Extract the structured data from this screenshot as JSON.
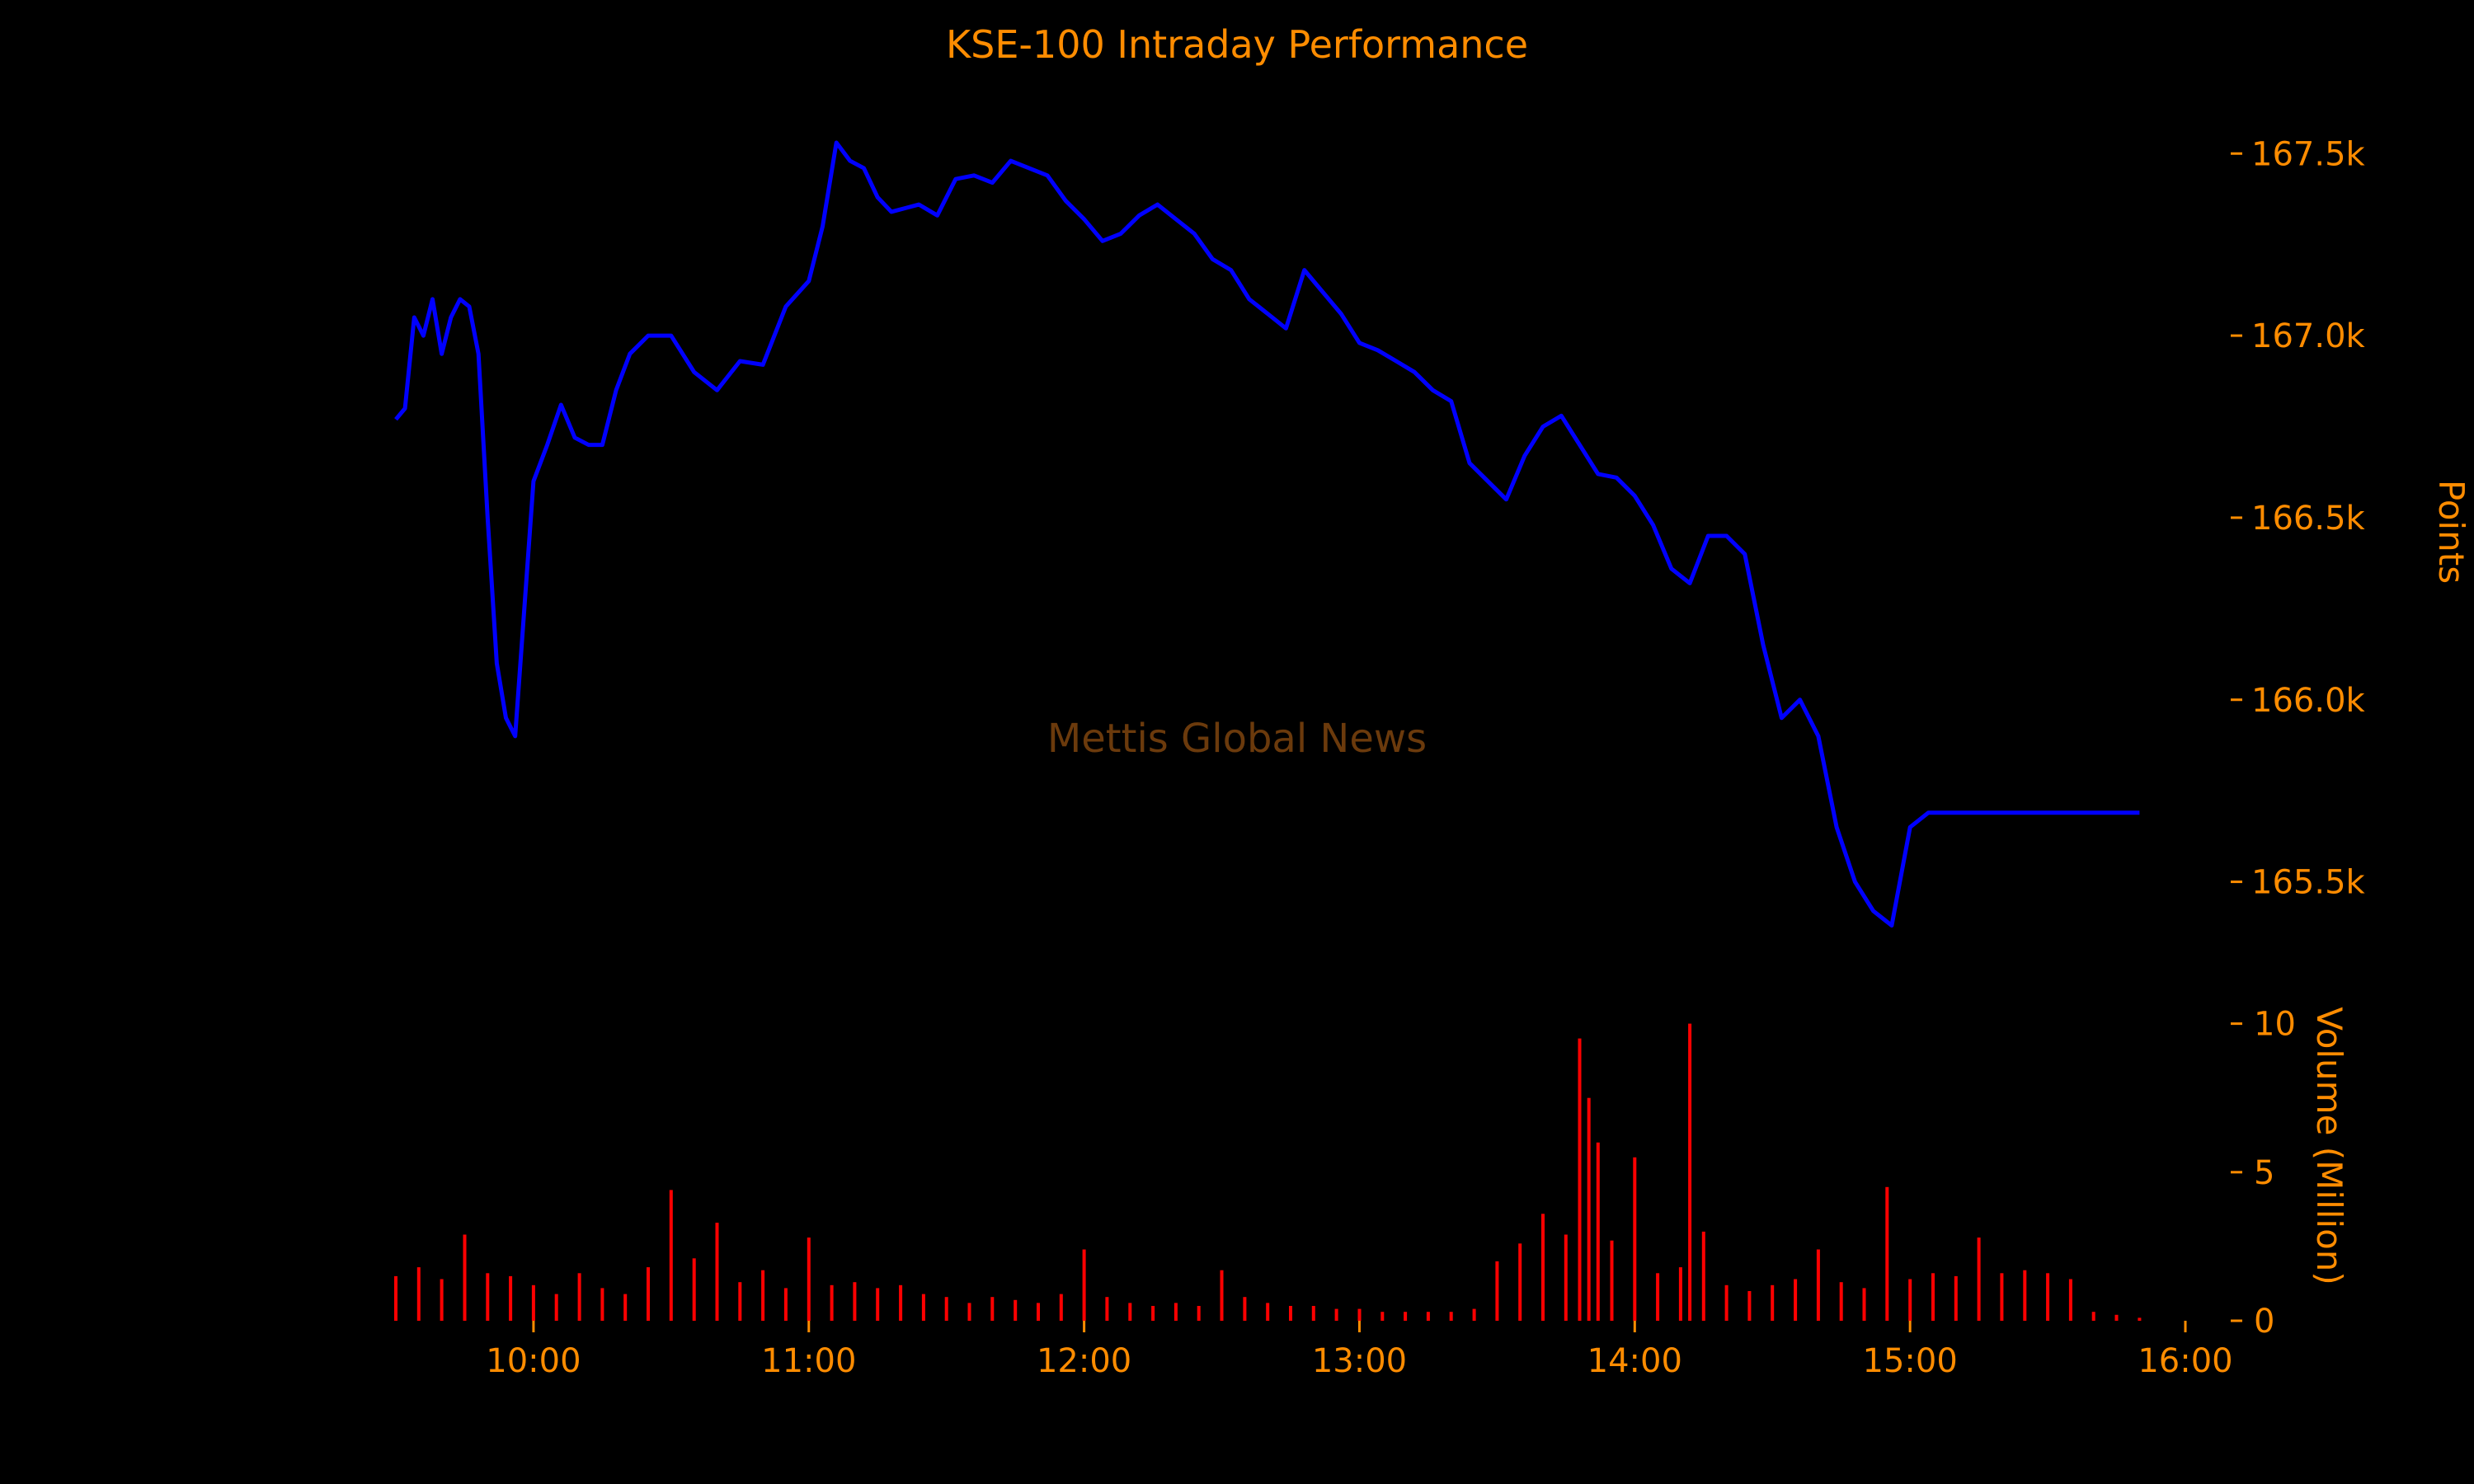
{
  "chart_data": [
    {
      "type": "line",
      "title": "KSE-100 Intraday Performance",
      "ylabel": "Points",
      "y_axis_side": "right",
      "ylim": [
        165250,
        167650
      ],
      "yticks": [
        165500,
        166000,
        166500,
        167000,
        167500
      ],
      "ytick_labels": [
        "165.5k",
        "166.0k",
        "166.5k",
        "167.0k",
        "167.5k"
      ],
      "xlim": [
        "09:30",
        "16:00"
      ],
      "line_color": "#0000ff",
      "grid": false,
      "series": [
        {
          "x": [
            "09:30",
            "09:32",
            "09:34",
            "09:36",
            "09:38",
            "09:40",
            "09:42",
            "09:44",
            "09:46",
            "09:48",
            "09:50",
            "09:52",
            "09:54",
            "09:56",
            "09:58",
            "10:00",
            "10:03",
            "10:06",
            "10:09",
            "10:12",
            "10:15",
            "10:18",
            "10:21",
            "10:25",
            "10:30",
            "10:35",
            "10:40",
            "10:45",
            "10:50",
            "10:55",
            "11:00",
            "11:03",
            "11:06",
            "11:09",
            "11:12",
            "11:15",
            "11:18",
            "11:21",
            "11:24",
            "11:28",
            "11:32",
            "11:36",
            "11:40",
            "11:44",
            "11:48",
            "11:52",
            "11:56",
            "12:00",
            "12:04",
            "12:08",
            "12:12",
            "12:16",
            "12:20",
            "12:24",
            "12:28",
            "12:32",
            "12:36",
            "12:40",
            "12:44",
            "12:48",
            "12:52",
            "12:56",
            "13:00",
            "13:04",
            "13:08",
            "13:12",
            "13:16",
            "13:20",
            "13:24",
            "13:28",
            "13:32",
            "13:36",
            "13:40",
            "13:44",
            "13:48",
            "13:52",
            "13:56",
            "14:00",
            "14:04",
            "14:08",
            "14:12",
            "14:16",
            "14:20",
            "14:24",
            "14:28",
            "14:32",
            "14:36",
            "14:40",
            "14:44",
            "14:48",
            "14:52",
            "14:56",
            "15:00",
            "15:04",
            "15:08",
            "15:12",
            "15:16",
            "15:20",
            "15:24",
            "15:28",
            "15:31",
            "15:35",
            "15:40",
            "15:45",
            "15:50"
          ],
          "values": [
            166770,
            166800,
            167050,
            167000,
            167100,
            166950,
            167050,
            167100,
            167080,
            166950,
            166500,
            166100,
            165950,
            165900,
            166250,
            166600,
            166700,
            166810,
            166720,
            166700,
            166700,
            166850,
            166950,
            167000,
            167000,
            166900,
            166850,
            166930,
            166920,
            167080,
            167150,
            167300,
            167530,
            167480,
            167460,
            167380,
            167340,
            167350,
            167360,
            167330,
            167430,
            167440,
            167420,
            167480,
            167460,
            167440,
            167370,
            167320,
            167260,
            167280,
            167330,
            167360,
            167320,
            167280,
            167210,
            167180,
            167100,
            167060,
            167020,
            167180,
            167120,
            167060,
            166980,
            166960,
            166930,
            166900,
            166850,
            166820,
            166650,
            166600,
            166550,
            166670,
            166750,
            166780,
            166700,
            166620,
            166610,
            166560,
            166480,
            166360,
            166320,
            166450,
            166450,
            166400,
            166150,
            165950,
            166000,
            165900,
            165650,
            165500,
            165420,
            165380,
            165650,
            165690,
            165690,
            165690,
            165690,
            165690,
            165690,
            165690,
            165690,
            165690,
            165690,
            165690,
            165690
          ]
        }
      ]
    },
    {
      "type": "bar",
      "ylabel": "Volume (Million)",
      "y_axis_side": "right",
      "ylim": [
        0,
        10.6
      ],
      "yticks": [
        0,
        5,
        10
      ],
      "ytick_labels": [
        "0",
        "5",
        "10"
      ],
      "xlim": [
        "09:30",
        "16:00"
      ],
      "xticks": [
        "10:00",
        "11:00",
        "12:00",
        "13:00",
        "14:00",
        "15:00",
        "16:00"
      ],
      "bar_color": "#ff0000",
      "grid": false,
      "series": [
        {
          "x": [
            "09:30",
            "09:35",
            "09:40",
            "09:45",
            "09:50",
            "09:55",
            "10:00",
            "10:05",
            "10:10",
            "10:15",
            "10:20",
            "10:25",
            "10:30",
            "10:35",
            "10:40",
            "10:45",
            "10:50",
            "10:55",
            "11:00",
            "11:05",
            "11:10",
            "11:15",
            "11:20",
            "11:25",
            "11:30",
            "11:35",
            "11:40",
            "11:45",
            "11:50",
            "11:55",
            "12:00",
            "12:05",
            "12:10",
            "12:15",
            "12:20",
            "12:25",
            "12:30",
            "12:35",
            "12:40",
            "12:45",
            "12:50",
            "12:55",
            "13:00",
            "13:05",
            "13:10",
            "13:15",
            "13:20",
            "13:25",
            "13:30",
            "13:35",
            "13:40",
            "13:45",
            "13:48",
            "13:50",
            "13:52",
            "13:55",
            "14:00",
            "14:05",
            "14:10",
            "14:12",
            "14:15",
            "14:20",
            "14:25",
            "14:30",
            "14:35",
            "14:40",
            "14:45",
            "14:50",
            "14:55",
            "15:00",
            "15:05",
            "15:10",
            "15:15",
            "15:20",
            "15:25",
            "15:30",
            "15:35",
            "15:40",
            "15:45",
            "15:50"
          ],
          "values": [
            1.5,
            1.8,
            1.4,
            2.9,
            1.6,
            1.5,
            1.2,
            0.9,
            1.6,
            1.1,
            0.9,
            1.8,
            4.4,
            2.1,
            3.3,
            1.3,
            1.7,
            1.1,
            2.8,
            1.2,
            1.3,
            1.1,
            1.2,
            0.9,
            0.8,
            0.6,
            0.8,
            0.7,
            0.6,
            0.9,
            2.4,
            0.8,
            0.6,
            0.5,
            0.6,
            0.5,
            1.7,
            0.8,
            0.6,
            0.5,
            0.5,
            0.4,
            0.4,
            0.3,
            0.3,
            0.3,
            0.3,
            0.4,
            2.0,
            2.6,
            3.6,
            2.9,
            9.5,
            7.5,
            6.0,
            2.7,
            5.5,
            1.6,
            1.8,
            10.0,
            3.0,
            1.2,
            1.0,
            1.2,
            1.4,
            2.4,
            1.3,
            1.1,
            4.5,
            1.4,
            1.6,
            1.5,
            2.8,
            1.6,
            1.7,
            1.6,
            1.4,
            0.3,
            0.2,
            0.1
          ]
        }
      ]
    }
  ],
  "watermark": "Mettis Global News"
}
